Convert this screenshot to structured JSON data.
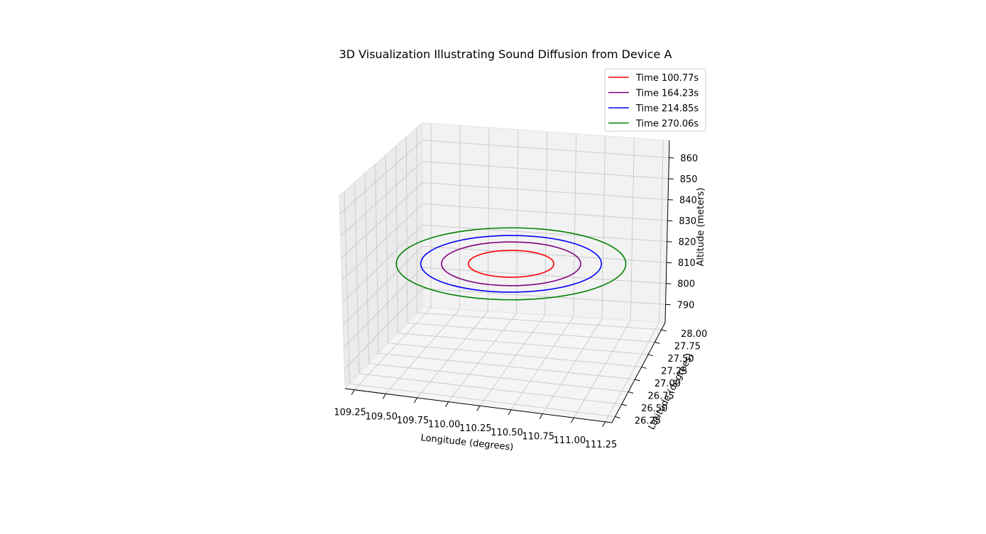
{
  "chart_data": {
    "type": "line",
    "projection": "3d",
    "title": "3D Visualization Illustrating Sound Diffusion from Device A",
    "xlabel": "Longitude (degrees)",
    "ylabel": "Latitude (degrees)",
    "zlabel": "Altitude (meters)",
    "x_ticks": [
      "109.25",
      "109.50",
      "109.75",
      "110.00",
      "110.25",
      "110.50",
      "110.75",
      "111.00",
      "111.25"
    ],
    "y_ticks": [
      "26.25",
      "26.50",
      "26.75",
      "27.00",
      "27.25",
      "27.50",
      "27.75",
      "28.00"
    ],
    "z_ticks": [
      "790",
      "800",
      "810",
      "820",
      "830",
      "840",
      "850",
      "860"
    ],
    "grid": true,
    "legend_position": "top-right",
    "center": {
      "longitude": 110.5,
      "latitude": 27.2,
      "altitude": 810
    },
    "series": [
      {
        "name": "Time 100.77s",
        "color": "#ff0000",
        "radius_deg": 0.35
      },
      {
        "name": "Time 164.23s",
        "color": "#800080",
        "radius_deg": 0.57
      },
      {
        "name": "Time 214.85s",
        "color": "#0000ff",
        "radius_deg": 0.74
      },
      {
        "name": "Time 270.06s",
        "color": "#008000",
        "radius_deg": 0.94
      }
    ]
  }
}
